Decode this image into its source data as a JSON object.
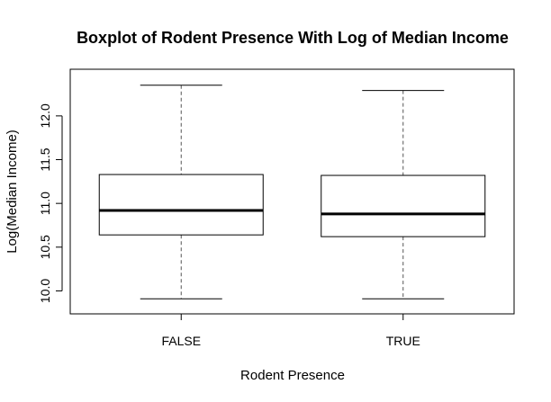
{
  "chart_data": {
    "type": "boxplot",
    "title": "Boxplot of Rodent Presence With Log of Median Income",
    "xlabel": "Rodent Presence",
    "ylabel": "Log(Median Income)",
    "categories": [
      "FALSE",
      "TRUE"
    ],
    "boxes": [
      {
        "category": "FALSE",
        "whisker_low": 9.91,
        "q1": 10.64,
        "median": 10.92,
        "q3": 11.33,
        "whisker_high": 12.35
      },
      {
        "category": "TRUE",
        "whisker_low": 9.91,
        "q1": 10.62,
        "median": 10.88,
        "q3": 11.32,
        "whisker_high": 12.29
      }
    ],
    "ylim": [
      9.83,
      12.42
    ],
    "yticks": [
      10.0,
      10.5,
      11.0,
      11.5,
      12.0
    ],
    "ytick_labels": [
      "10.0",
      "10.5",
      "11.0",
      "11.5",
      "12.0"
    ],
    "grid": false,
    "legend": "none",
    "colors": {
      "box_fill": "#ffffff",
      "stroke": "#000000",
      "whisker_stroke": "#555555"
    }
  }
}
